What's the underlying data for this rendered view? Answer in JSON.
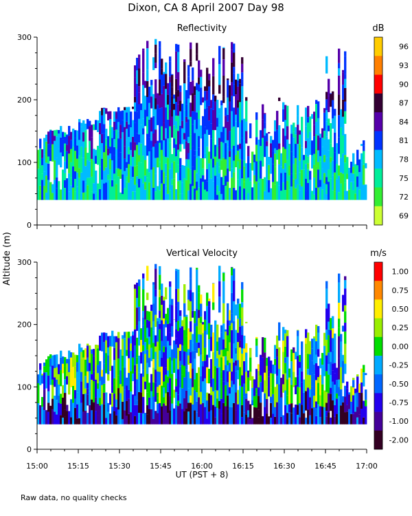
{
  "title": "Dixon, CA   8 April 2007   Day  98",
  "y_label": "Altitude (m)",
  "x_label": "UT  (PST + 8)",
  "footnote": "Raw data, no quality checks",
  "chart_data": [
    {
      "type": "heatmap",
      "title": "Reflectivity",
      "x_ticks": [
        "15:00",
        "15:15",
        "15:30",
        "15:45",
        "16:00",
        "16:15",
        "16:30",
        "16:45",
        "17:00"
      ],
      "y_ticks": [
        0,
        100,
        200,
        300
      ],
      "xlim": [
        "15:00",
        "17:00"
      ],
      "ylim": [
        0,
        300
      ],
      "colorbar_unit": "dB",
      "colorbar_labels": [
        "96",
        "93",
        "90",
        "87",
        "84",
        "81",
        "78",
        "75",
        "72",
        "69"
      ],
      "colorbar_colors": [
        "#ffcc00",
        "#ff7f00",
        "#ff0000",
        "#330033",
        "#5500aa",
        "#0033ff",
        "#00bbff",
        "#00ee99",
        "#33ee33",
        "#ccff33"
      ]
    },
    {
      "type": "heatmap",
      "title": "Vertical Velocity",
      "x_ticks": [
        "15:00",
        "15:15",
        "15:30",
        "15:45",
        "16:00",
        "16:15",
        "16:30",
        "16:45",
        "17:00"
      ],
      "y_ticks": [
        0,
        100,
        200,
        300
      ],
      "xlim": [
        "15:00",
        "17:00"
      ],
      "ylim": [
        0,
        300
      ],
      "colorbar_unit": "m/s",
      "colorbar_labels": [
        "1.00",
        "0.75",
        "0.50",
        "0.25",
        "0.00",
        "-0.25",
        "-0.50",
        "-0.75",
        "-1.00",
        "-2.00"
      ],
      "colorbar_colors": [
        "#ff0000",
        "#ff8800",
        "#ffee00",
        "#99ee00",
        "#00dd00",
        "#00aaff",
        "#0066ff",
        "#2200ee",
        "#440099",
        "#330022"
      ]
    }
  ]
}
